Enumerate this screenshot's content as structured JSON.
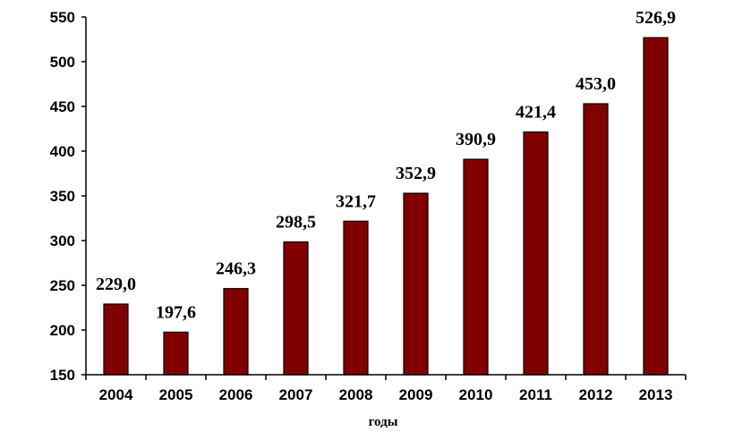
{
  "chart_data": {
    "type": "bar",
    "categories": [
      "2004",
      "2005",
      "2006",
      "2007",
      "2008",
      "2009",
      "2010",
      "2011",
      "2012",
      "2013"
    ],
    "values": [
      229.0,
      197.6,
      246.3,
      298.5,
      321.7,
      352.9,
      390.9,
      421.4,
      453.0,
      526.9
    ],
    "data_labels": [
      "229,0",
      "197,6",
      "246,3",
      "298,5",
      "321,7",
      "352,9",
      "390,9",
      "421,4",
      "453,0",
      "526,9"
    ],
    "title": "",
    "xlabel": "годы",
    "ylabel": "",
    "ylim": [
      150,
      550
    ],
    "yticks": [
      "150",
      "200",
      "250",
      "300",
      "350",
      "400",
      "450",
      "500",
      "550"
    ],
    "bar_color": "#800000",
    "grid": false,
    "legend": "none"
  }
}
